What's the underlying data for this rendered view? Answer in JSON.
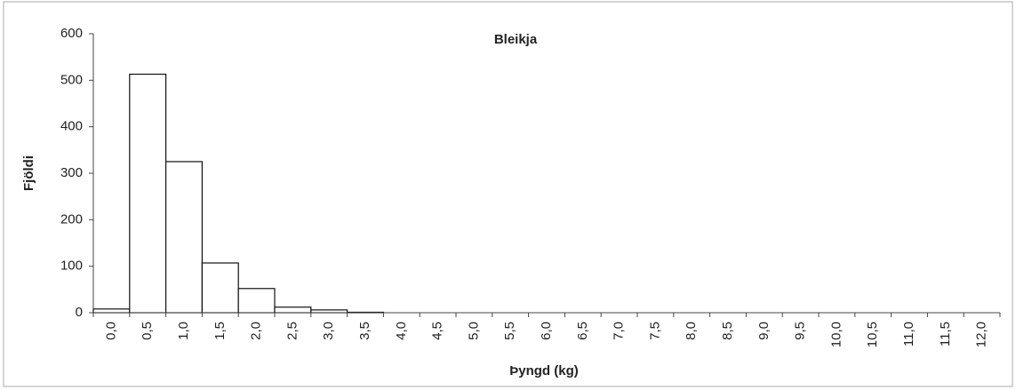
{
  "chart_data": {
    "type": "bar",
    "title": "Bleikja",
    "x_label": "Þyngd (kg)",
    "y_label": "Fjöldi",
    "categories": [
      "0,0",
      "0,5",
      "1,0",
      "1,5",
      "2,0",
      "2,5",
      "3,0",
      "3,5",
      "4,0",
      "4,5",
      "5,0",
      "5,5",
      "6,0",
      "6,5",
      "7,0",
      "7,5",
      "8,0",
      "8,5",
      "9,0",
      "9,5",
      "10,0",
      "10,5",
      "11,0",
      "11,5",
      "12,0"
    ],
    "values": [
      8,
      513,
      325,
      107,
      52,
      12,
      6,
      1,
      0,
      0,
      0,
      0,
      0,
      0,
      0,
      0,
      0,
      0,
      0,
      0,
      0,
      0,
      0,
      0,
      0
    ],
    "color": "#ffffff",
    "ylim": [
      0,
      600
    ],
    "yticks": [
      0,
      100,
      200,
      300,
      400,
      500,
      600
    ],
    "grid": false
  }
}
